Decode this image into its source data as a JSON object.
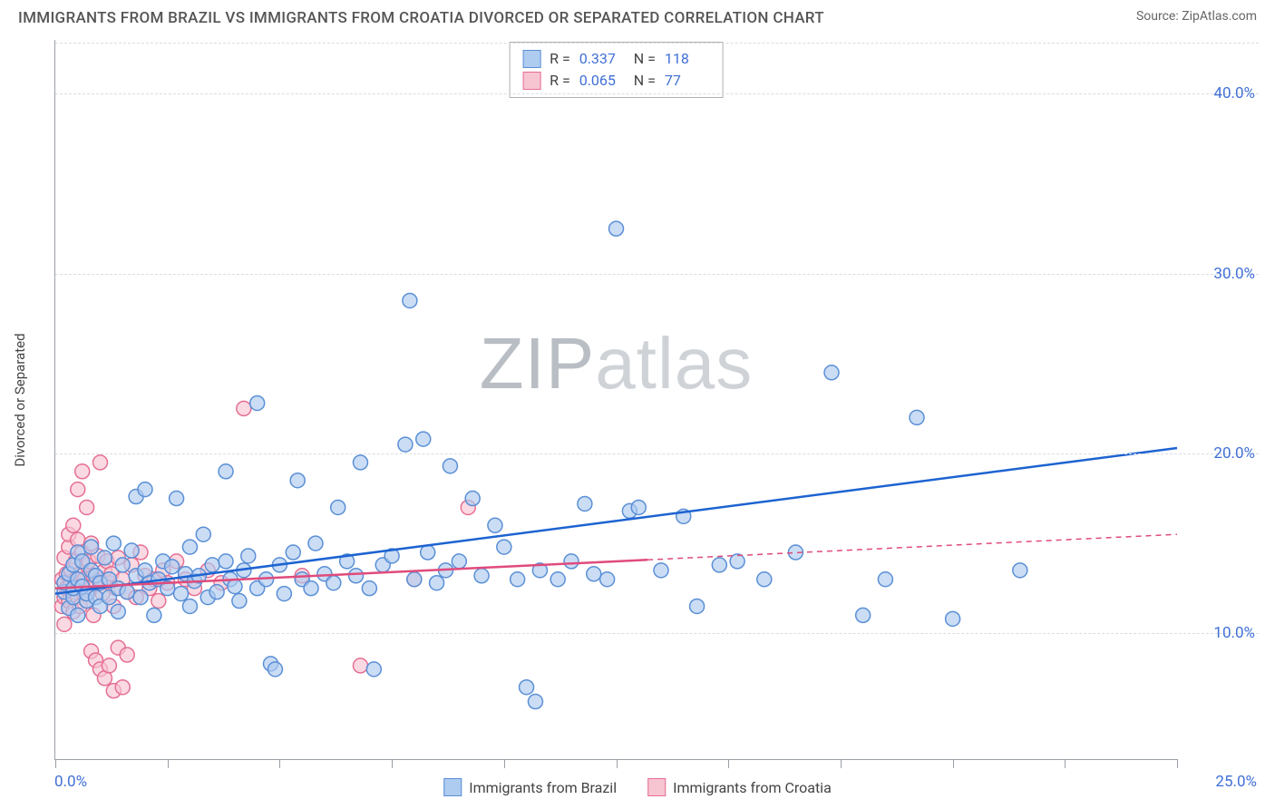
{
  "title": "IMMIGRANTS FROM BRAZIL VS IMMIGRANTS FROM CROATIA DIVORCED OR SEPARATED CORRELATION CHART",
  "source": "Source: ZipAtlas.com",
  "y_axis_label": "Divorced or Separated",
  "watermark": "ZIPatlas",
  "chart": {
    "type": "scatter",
    "background_color": "#ffffff",
    "grid_color": "#d9dde2",
    "axis_color": "#9aa0a6",
    "text_color": "#444444",
    "value_color": "#3f6fd6",
    "xlim": [
      0,
      25
    ],
    "ylim": [
      3,
      43
    ],
    "x_ticks": [
      0,
      2.5,
      5,
      7.5,
      10,
      12.5,
      15,
      17.5,
      20,
      22.5,
      25
    ],
    "x_tick_labels": {
      "0": "0.0%",
      "25": "25.0%"
    },
    "y_ticks": [
      10,
      20,
      30,
      40
    ],
    "y_tick_labels": [
      "10.0%",
      "20.0%",
      "30.0%",
      "40.0%"
    ],
    "marker_radius": 8,
    "marker_stroke_width": 1.5,
    "line_width": 2.5,
    "series": [
      {
        "name": "Immigrants from Brazil",
        "fill_color": "#aecbf0",
        "stroke_color": "#5a8fd6",
        "line_color": "#1d63d1",
        "R": "0.337",
        "N": "118",
        "trend": {
          "x1": 0,
          "y1": 12.2,
          "x2": 25,
          "y2": 20.3,
          "solid_until": 25
        },
        "points": [
          [
            0.2,
            12.3
          ],
          [
            0.2,
            12.8
          ],
          [
            0.3,
            11.4
          ],
          [
            0.3,
            13.3
          ],
          [
            0.4,
            12.0
          ],
          [
            0.4,
            12.5
          ],
          [
            0.4,
            13.8
          ],
          [
            0.5,
            13.0
          ],
          [
            0.5,
            11.0
          ],
          [
            0.5,
            14.5
          ],
          [
            0.6,
            12.6
          ],
          [
            0.6,
            14.0
          ],
          [
            0.7,
            11.8
          ],
          [
            0.7,
            12.2
          ],
          [
            0.8,
            13.5
          ],
          [
            0.8,
            14.8
          ],
          [
            0.9,
            12.0
          ],
          [
            0.9,
            13.2
          ],
          [
            1.0,
            11.5
          ],
          [
            1.0,
            12.8
          ],
          [
            1.1,
            14.2
          ],
          [
            1.2,
            12.0
          ],
          [
            1.2,
            13.0
          ],
          [
            1.3,
            15.0
          ],
          [
            1.4,
            12.5
          ],
          [
            1.4,
            11.2
          ],
          [
            1.5,
            13.8
          ],
          [
            1.6,
            12.3
          ],
          [
            1.7,
            14.6
          ],
          [
            1.8,
            13.2
          ],
          [
            1.8,
            17.6
          ],
          [
            1.9,
            12.0
          ],
          [
            2.0,
            13.5
          ],
          [
            2.0,
            18.0
          ],
          [
            2.1,
            12.8
          ],
          [
            2.2,
            11.0
          ],
          [
            2.3,
            13.0
          ],
          [
            2.4,
            14.0
          ],
          [
            2.5,
            12.5
          ],
          [
            2.6,
            13.7
          ],
          [
            2.7,
            17.5
          ],
          [
            2.8,
            12.2
          ],
          [
            2.9,
            13.3
          ],
          [
            3.0,
            14.8
          ],
          [
            3.0,
            11.5
          ],
          [
            3.1,
            12.9
          ],
          [
            3.2,
            13.2
          ],
          [
            3.3,
            15.5
          ],
          [
            3.4,
            12.0
          ],
          [
            3.5,
            13.8
          ],
          [
            3.6,
            12.3
          ],
          [
            3.8,
            14.0
          ],
          [
            3.8,
            19.0
          ],
          [
            3.9,
            13.0
          ],
          [
            4.0,
            12.6
          ],
          [
            4.1,
            11.8
          ],
          [
            4.2,
            13.5
          ],
          [
            4.3,
            14.3
          ],
          [
            4.5,
            22.8
          ],
          [
            4.5,
            12.5
          ],
          [
            4.7,
            13.0
          ],
          [
            4.8,
            8.3
          ],
          [
            4.9,
            8.0
          ],
          [
            5.0,
            13.8
          ],
          [
            5.1,
            12.2
          ],
          [
            5.3,
            14.5
          ],
          [
            5.4,
            18.5
          ],
          [
            5.5,
            13.0
          ],
          [
            5.7,
            12.5
          ],
          [
            5.8,
            15.0
          ],
          [
            6.0,
            13.3
          ],
          [
            6.2,
            12.8
          ],
          [
            6.3,
            17.0
          ],
          [
            6.5,
            14.0
          ],
          [
            6.7,
            13.2
          ],
          [
            6.8,
            19.5
          ],
          [
            7.0,
            12.5
          ],
          [
            7.1,
            8.0
          ],
          [
            7.3,
            13.8
          ],
          [
            7.5,
            14.3
          ],
          [
            7.8,
            20.5
          ],
          [
            7.9,
            28.5
          ],
          [
            8.0,
            13.0
          ],
          [
            8.2,
            20.8
          ],
          [
            8.3,
            14.5
          ],
          [
            8.5,
            12.8
          ],
          [
            8.7,
            13.5
          ],
          [
            8.8,
            19.3
          ],
          [
            9.0,
            14.0
          ],
          [
            9.3,
            17.5
          ],
          [
            9.5,
            13.2
          ],
          [
            9.8,
            16.0
          ],
          [
            10.0,
            14.8
          ],
          [
            10.3,
            13.0
          ],
          [
            10.5,
            7.0
          ],
          [
            10.7,
            6.2
          ],
          [
            10.8,
            13.5
          ],
          [
            11.2,
            13.0
          ],
          [
            11.5,
            14.0
          ],
          [
            11.8,
            17.2
          ],
          [
            12.0,
            13.3
          ],
          [
            12.3,
            13.0
          ],
          [
            12.5,
            32.5
          ],
          [
            12.8,
            16.8
          ],
          [
            13.0,
            17.0
          ],
          [
            13.5,
            13.5
          ],
          [
            14.0,
            16.5
          ],
          [
            14.3,
            11.5
          ],
          [
            14.8,
            13.8
          ],
          [
            15.2,
            14.0
          ],
          [
            15.8,
            13.0
          ],
          [
            16.5,
            14.5
          ],
          [
            17.3,
            24.5
          ],
          [
            18.0,
            11.0
          ],
          [
            18.5,
            13.0
          ],
          [
            19.2,
            22.0
          ],
          [
            20.0,
            10.8
          ],
          [
            21.5,
            13.5
          ]
        ]
      },
      {
        "name": "Immigrants from Croatia",
        "fill_color": "#f7c4d2",
        "stroke_color": "#e56f93",
        "line_color": "#e04b7c",
        "R": "0.065",
        "N": "77",
        "trend": {
          "x1": 0,
          "y1": 12.5,
          "x2": 25,
          "y2": 15.5,
          "solid_until": 13.2
        },
        "points": [
          [
            0.15,
            11.5
          ],
          [
            0.15,
            13.0
          ],
          [
            0.2,
            12.0
          ],
          [
            0.2,
            14.2
          ],
          [
            0.2,
            10.5
          ],
          [
            0.25,
            13.3
          ],
          [
            0.25,
            12.5
          ],
          [
            0.3,
            11.8
          ],
          [
            0.3,
            14.8
          ],
          [
            0.3,
            15.5
          ],
          [
            0.35,
            12.8
          ],
          [
            0.35,
            13.5
          ],
          [
            0.4,
            11.2
          ],
          [
            0.4,
            12.3
          ],
          [
            0.4,
            16.0
          ],
          [
            0.45,
            13.0
          ],
          [
            0.45,
            14.0
          ],
          [
            0.5,
            12.0
          ],
          [
            0.5,
            15.2
          ],
          [
            0.5,
            18.0
          ],
          [
            0.55,
            13.3
          ],
          [
            0.55,
            11.5
          ],
          [
            0.6,
            12.6
          ],
          [
            0.6,
            14.5
          ],
          [
            0.6,
            19.0
          ],
          [
            0.65,
            13.0
          ],
          [
            0.65,
            12.2
          ],
          [
            0.7,
            11.8
          ],
          [
            0.7,
            13.8
          ],
          [
            0.7,
            17.0
          ],
          [
            0.75,
            14.0
          ],
          [
            0.8,
            12.5
          ],
          [
            0.8,
            15.0
          ],
          [
            0.8,
            9.0
          ],
          [
            0.85,
            13.2
          ],
          [
            0.85,
            11.0
          ],
          [
            0.9,
            12.8
          ],
          [
            0.9,
            8.5
          ],
          [
            0.95,
            14.3
          ],
          [
            1.0,
            13.0
          ],
          [
            1.0,
            19.5
          ],
          [
            1.0,
            8.0
          ],
          [
            1.05,
            12.2
          ],
          [
            1.1,
            13.5
          ],
          [
            1.1,
            7.5
          ],
          [
            1.15,
            14.0
          ],
          [
            1.2,
            12.8
          ],
          [
            1.2,
            8.2
          ],
          [
            1.25,
            13.3
          ],
          [
            1.3,
            11.5
          ],
          [
            1.3,
            6.8
          ],
          [
            1.35,
            12.5
          ],
          [
            1.4,
            14.2
          ],
          [
            1.4,
            9.2
          ],
          [
            1.5,
            13.0
          ],
          [
            1.5,
            7.0
          ],
          [
            1.6,
            12.3
          ],
          [
            1.6,
            8.8
          ],
          [
            1.7,
            13.8
          ],
          [
            1.8,
            12.0
          ],
          [
            1.9,
            14.5
          ],
          [
            2.0,
            13.2
          ],
          [
            2.1,
            12.5
          ],
          [
            2.2,
            13.0
          ],
          [
            2.3,
            11.8
          ],
          [
            2.4,
            13.5
          ],
          [
            2.5,
            12.8
          ],
          [
            2.7,
            14.0
          ],
          [
            2.9,
            13.0
          ],
          [
            3.1,
            12.5
          ],
          [
            3.4,
            13.5
          ],
          [
            3.7,
            12.8
          ],
          [
            4.2,
            22.5
          ],
          [
            5.5,
            13.2
          ],
          [
            6.8,
            8.2
          ],
          [
            8.0,
            13.0
          ],
          [
            9.2,
            17.0
          ]
        ]
      }
    ]
  },
  "legend_bottom": [
    {
      "label": "Immigrants from Brazil",
      "fill": "#aecbf0",
      "stroke": "#5a8fd6"
    },
    {
      "label": "Immigrants from Croatia",
      "fill": "#f7c4d2",
      "stroke": "#e56f93"
    }
  ]
}
